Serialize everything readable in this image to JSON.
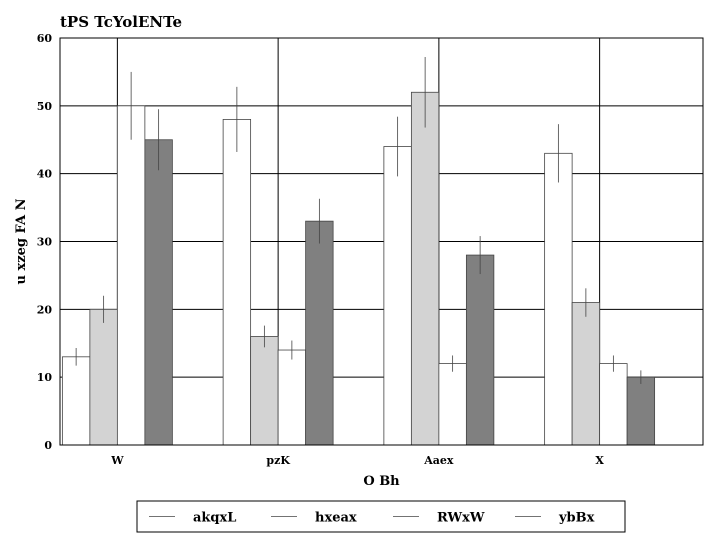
{
  "chart_data": {
    "type": "bar",
    "title": "tPS TcYolENTe",
    "xlabel": "O Bh",
    "ylabel": "u xzeg FA N",
    "categories": [
      "W",
      "pzK",
      "Aaex",
      "X"
    ],
    "ylim": [
      0,
      60
    ],
    "yticks": [
      0,
      10,
      20,
      30,
      40,
      50,
      60
    ],
    "grid": true,
    "legend_position": "bottom",
    "series": [
      {
        "name": "akqxL",
        "color": "#ffffff",
        "values": [
          13,
          48,
          44,
          43
        ],
        "errors": [
          1.3,
          4.8,
          4.4,
          4.3
        ]
      },
      {
        "name": "hxeax",
        "color": "#d3d3d3",
        "values": [
          20,
          16,
          52,
          21
        ],
        "errors": [
          2.0,
          1.6,
          5.2,
          2.1
        ]
      },
      {
        "name": "RWxW",
        "color": "#ffffff",
        "values": [
          50,
          14,
          12,
          12
        ],
        "errors": [
          5.0,
          1.4,
          1.2,
          1.2
        ]
      },
      {
        "name": "ybBx",
        "color": "#808080",
        "values": [
          45,
          33,
          28,
          10
        ],
        "errors": [
          4.5,
          3.3,
          2.8,
          1.0
        ]
      }
    ]
  }
}
